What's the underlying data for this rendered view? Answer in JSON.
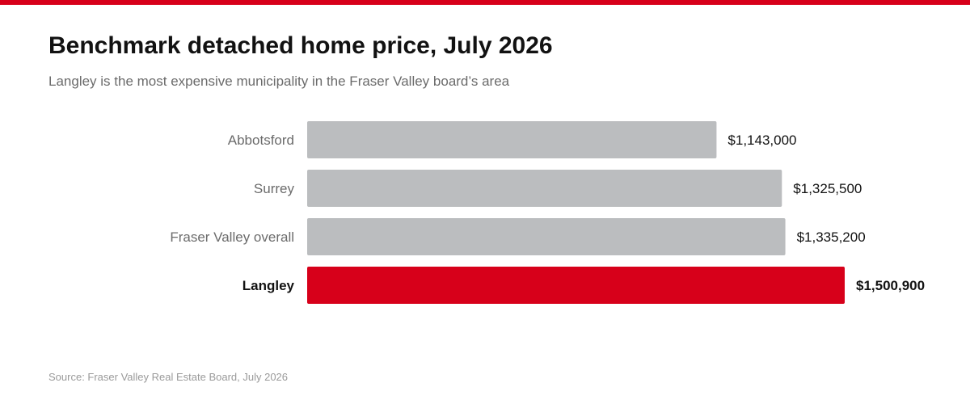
{
  "title": "Benchmark detached home price, July 2026",
  "subtitle": "Langley is the most expensive municipality in the Fraser Valley board’s area",
  "source": "Source: Fraser Valley Real Estate Board, July 2026",
  "colors": {
    "accent": "#d7001a",
    "bar_default": "#bbbdbf",
    "label_default": "#6b6b6b",
    "label_highlight": "#121212",
    "value_text": "#121212"
  },
  "chart_data": {
    "type": "bar",
    "orientation": "horizontal",
    "title": "Benchmark detached home price, July 2026",
    "xlabel": "",
    "ylabel": "",
    "xlim": [
      0,
      1500900
    ],
    "grid": false,
    "legend": "none",
    "categories": [
      "Abbotsford",
      "Surrey",
      "Fraser Valley overall",
      "Langley"
    ],
    "values": [
      1143000,
      1325500,
      1335200,
      1500900
    ],
    "value_labels": [
      "$1,143,000",
      "$1,325,500",
      "$1,335,200",
      "$1,500,900"
    ],
    "highlight": [
      "Langley"
    ]
  }
}
